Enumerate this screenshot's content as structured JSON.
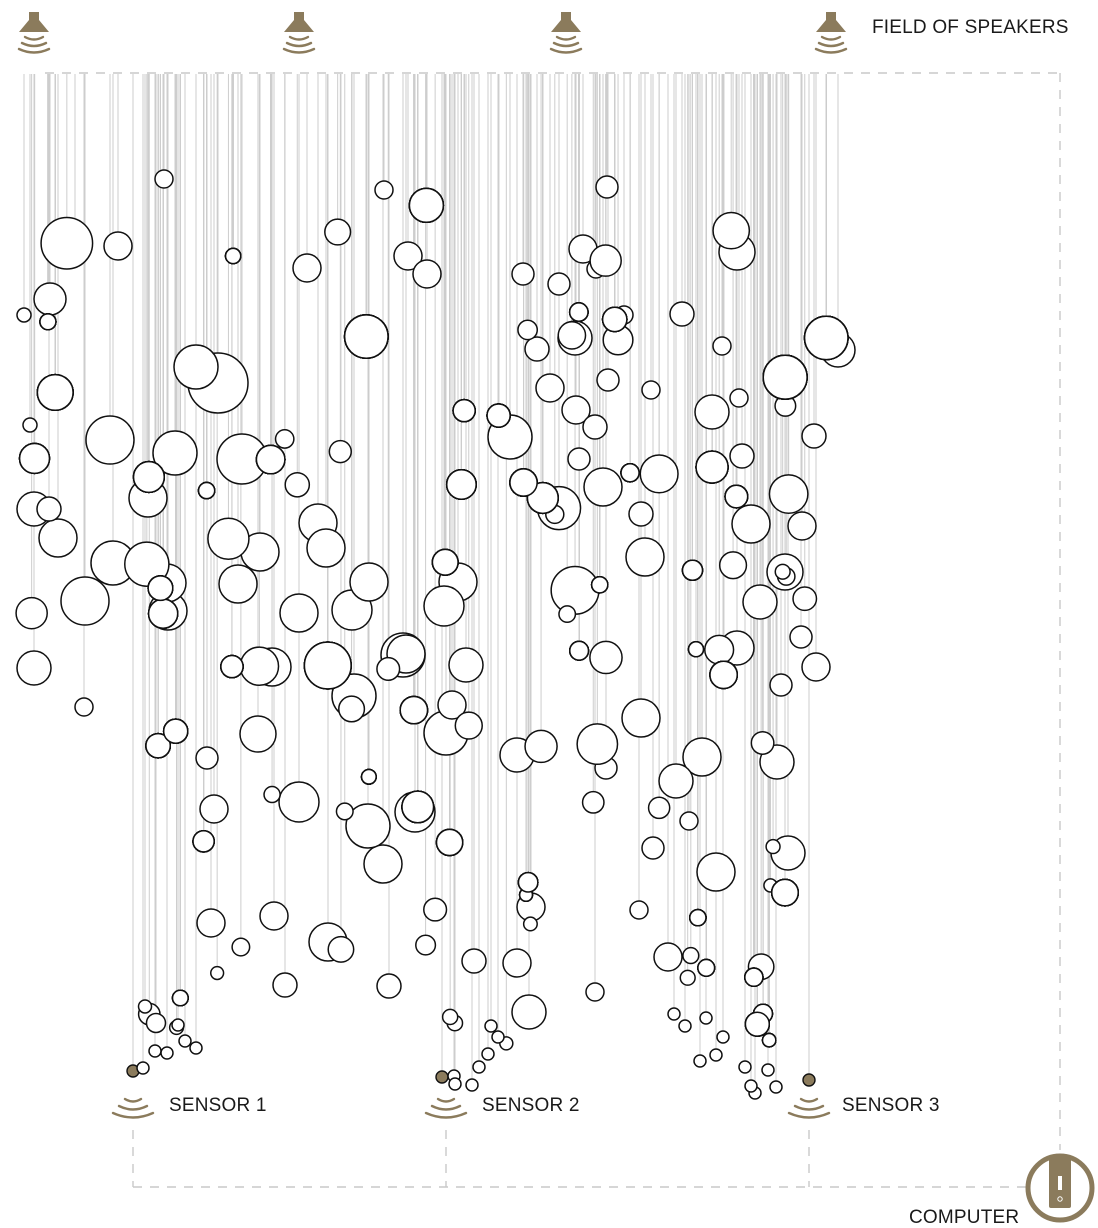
{
  "labels": {
    "speakers": "FIELD OF SPEAKERS",
    "sensor1": "SENSOR 1",
    "sensor2": "SENSOR 2",
    "sensor3": "SENSOR 3",
    "computer": "COMPUTER"
  },
  "colors": {
    "accent": "#8b7b5c",
    "bubble_stroke": "#111111",
    "string": "#cdcdcd",
    "dash": "#c9c9c9"
  },
  "icons": {
    "speaker": "speaker-icon",
    "sensor": "sensor-wave-icon",
    "computer": "computer-power-icon"
  }
}
